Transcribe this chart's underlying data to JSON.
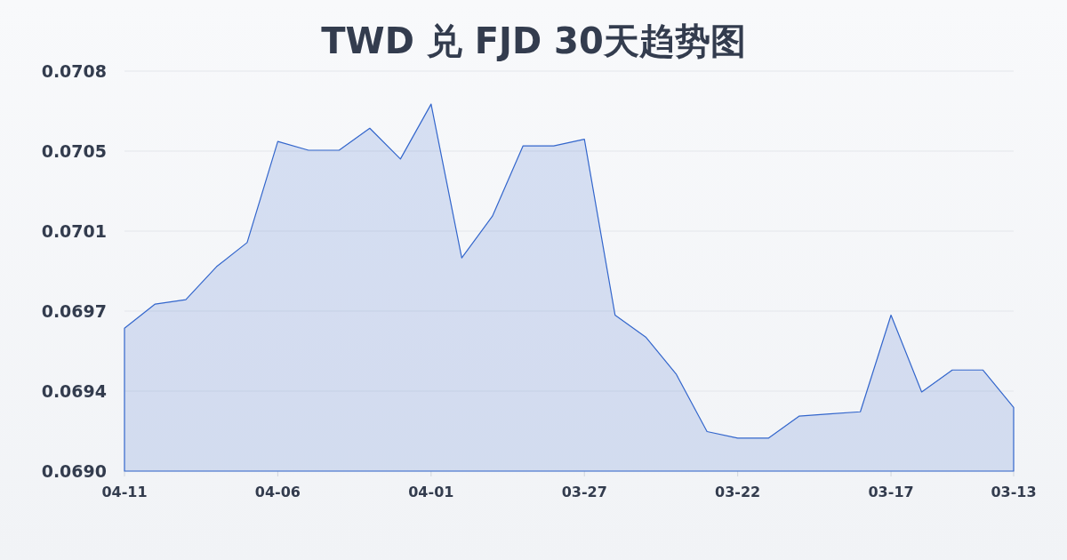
{
  "chart_data": {
    "type": "area",
    "title": "TWD 兑 FJD 30天趋势图",
    "categories": [
      "04-11",
      null,
      null,
      null,
      null,
      "04-06",
      null,
      null,
      null,
      null,
      "04-01",
      null,
      null,
      null,
      null,
      "03-27",
      null,
      null,
      null,
      null,
      "03-22",
      null,
      null,
      null,
      null,
      "03-17",
      null,
      null,
      null,
      "03-13"
    ],
    "values": [
      0.06965,
      0.06976,
      0.06978,
      0.06993,
      0.07004,
      0.0705,
      0.07046,
      0.07046,
      0.07056,
      0.07042,
      0.07067,
      0.06997,
      0.07016,
      0.07048,
      0.07048,
      0.07051,
      0.06971,
      0.06961,
      0.06944,
      0.06918,
      0.06915,
      0.06915,
      0.06925,
      0.06926,
      0.06927,
      0.06971,
      0.06936,
      0.06946,
      0.06946,
      0.06929
    ],
    "color": "#3366cc",
    "ylim": [
      0.069,
      0.07082
    ],
    "yticks": [
      {
        "value": 0.069,
        "label": "0.0690"
      },
      {
        "value": 0.069364,
        "label": "0.0694"
      },
      {
        "value": 0.069728,
        "label": "0.0697"
      },
      {
        "value": 0.070092,
        "label": "0.0701"
      },
      {
        "value": 0.070456,
        "label": "0.0705"
      },
      {
        "value": 0.07082,
        "label": "0.0708"
      }
    ],
    "grid": "y"
  }
}
